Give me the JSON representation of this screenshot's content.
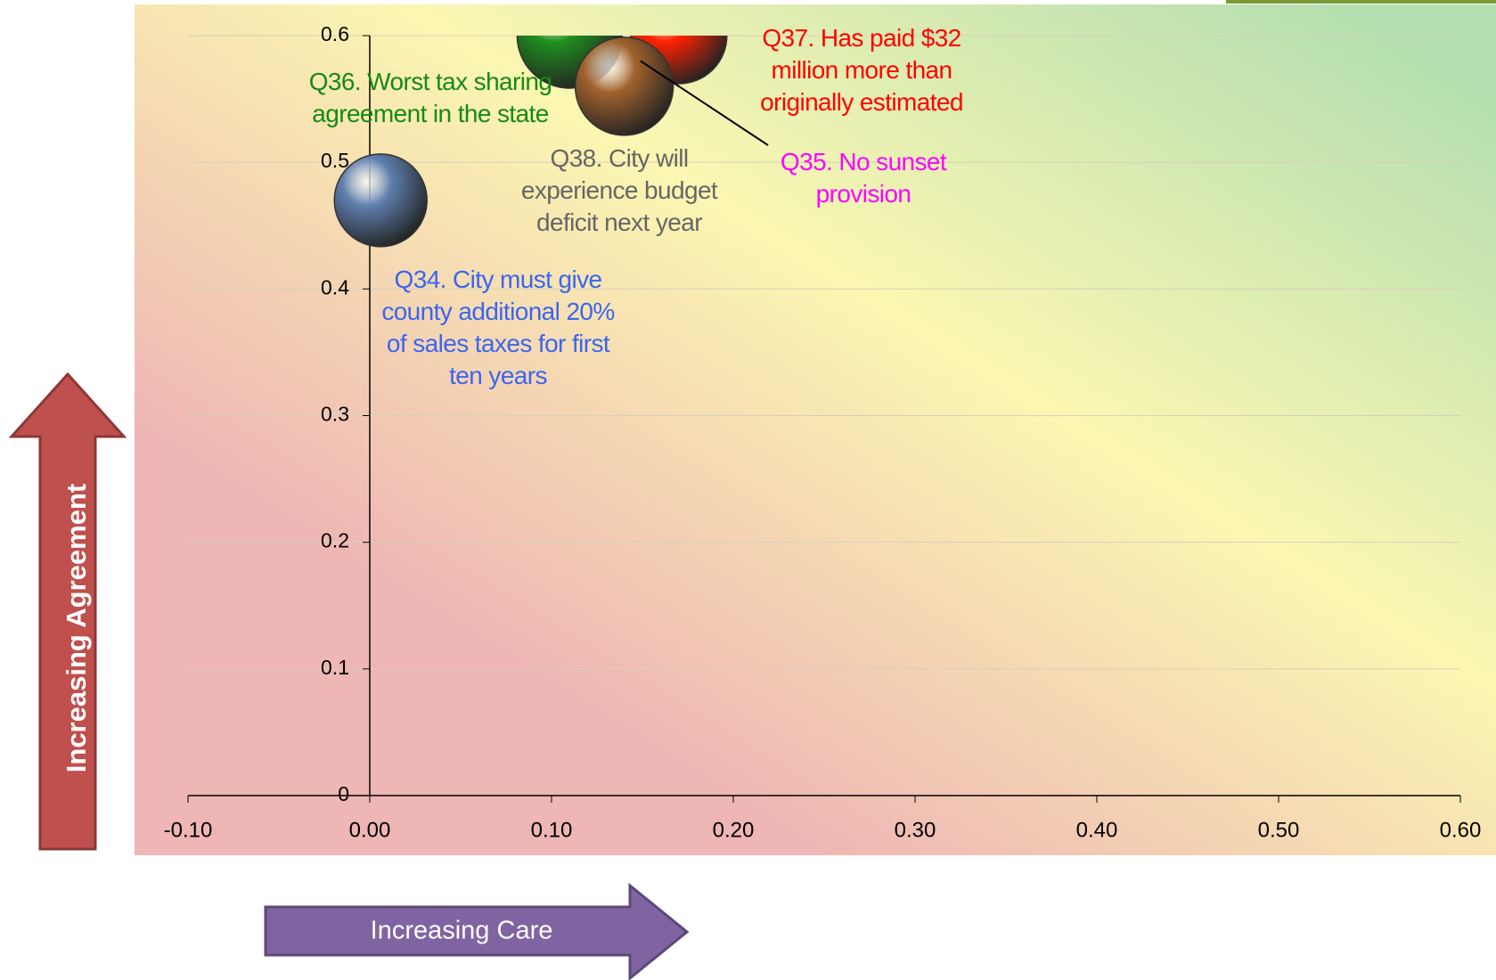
{
  "chart_data": {
    "type": "bubble",
    "x_label": "Increasing Care",
    "y_label": "Increasing Agreement",
    "xlim": [
      -0.1,
      0.6
    ],
    "xticks": [
      {
        "value": -0.1,
        "label": "-0.10"
      },
      {
        "value": 0,
        "label": "0.00"
      },
      {
        "value": 0.1,
        "label": "0.10"
      },
      {
        "value": 0.2,
        "label": "0.20"
      },
      {
        "value": 0.3,
        "label": "0.30"
      },
      {
        "value": 0.4,
        "label": "0.40"
      },
      {
        "value": 0.5,
        "label": "0.50"
      },
      {
        "value": 0.6,
        "label": "0.60"
      }
    ],
    "ylim": [
      0,
      0.6
    ],
    "yticks": [
      0,
      0.1,
      0.2,
      0.3,
      0.4,
      0.5,
      0.6
    ],
    "grid": true,
    "series": [
      {
        "name": "Q34. City must give county additional 20% of sales taxes for first ten years",
        "color": "#5f7fae",
        "x": [
          0.006
        ],
        "values": [
          0.47
        ]
      },
      {
        "name": "Q35. No sunset provision",
        "color": "#ff00ff",
        "x": [
          0.145
        ],
        "values": [
          0.58
        ]
      },
      {
        "name": "Q36. Worst tax sharing agreement in the state",
        "color": "#1f8f1f",
        "x": [
          0.11
        ],
        "values": [
          0.6
        ]
      },
      {
        "name": "Q37. Has paid $32 million more than originally estimated",
        "color": "#ff2200",
        "x": [
          0.17
        ],
        "values": [
          0.6
        ]
      },
      {
        "name": "Q38. City will experience budget deficit next year",
        "color": "#a0622d",
        "x": [
          0.14
        ],
        "values": [
          0.56
        ]
      }
    ]
  }
}
